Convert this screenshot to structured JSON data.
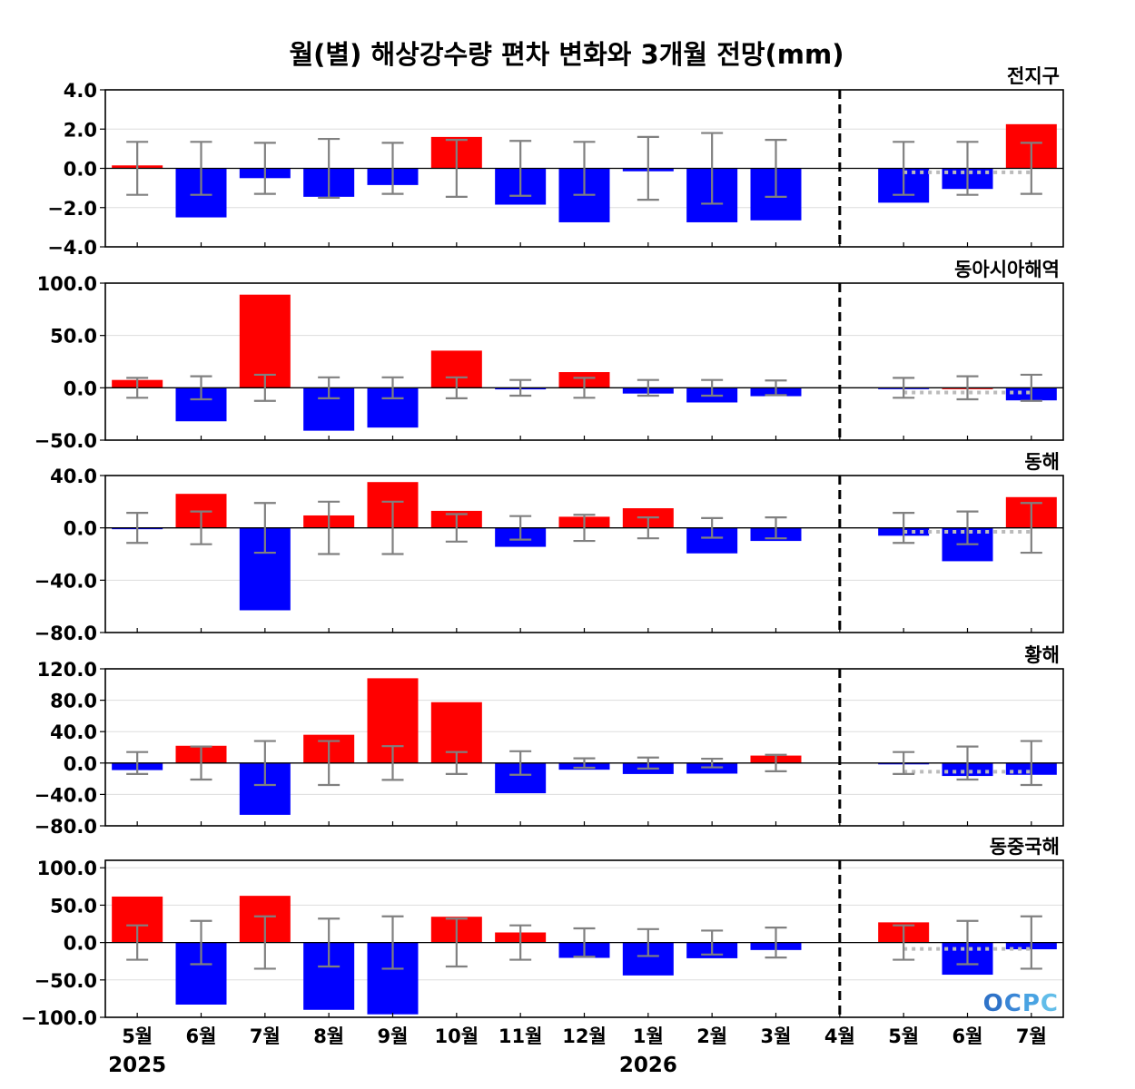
{
  "title": "월(별) 해상강수량 편차 변화와 3개월 전망(mm)",
  "logo": "OCPC",
  "colors": {
    "positive": "#ff0000",
    "negative": "#0000ff",
    "errorbar": "#808080",
    "forecast_line": "#bbbbbb",
    "grid": "#dddddd"
  },
  "chart_data": {
    "type": "bar",
    "categories": [
      "5월",
      "6월",
      "7월",
      "8월",
      "9월",
      "10월",
      "11월",
      "12월",
      "1월",
      "2월",
      "3월",
      "4월",
      "5월",
      "6월",
      "7월"
    ],
    "years": [
      {
        "label": "2025",
        "index": 0
      },
      {
        "label": "2026",
        "index": 8
      }
    ],
    "divider_after_index": 11,
    "panels": [
      {
        "name": "전지구",
        "ylim": [
          -4,
          4
        ],
        "yticks": [
          4,
          2,
          0,
          -2,
          -4
        ],
        "ytick_labels": [
          "4.0",
          "2.0",
          "0.0",
          "−2.0",
          "−4.0"
        ],
        "values": [
          0.15,
          -2.5,
          -0.5,
          -1.45,
          -0.85,
          1.6,
          -1.85,
          -2.75,
          -0.15,
          -2.75,
          -2.65,
          null,
          -1.75,
          -1.05,
          2.25
        ],
        "error": [
          1.35,
          1.35,
          1.3,
          1.5,
          1.3,
          1.45,
          1.4,
          1.35,
          1.6,
          1.8,
          1.45,
          null,
          1.35,
          1.35,
          1.3
        ],
        "forecast_mean": -0.2
      },
      {
        "name": "동아시아해역",
        "ylim": [
          -50,
          100
        ],
        "yticks": [
          100,
          50,
          0,
          -50
        ],
        "ytick_labels": [
          "100.0",
          "50.0",
          "0.0",
          "−50.0"
        ],
        "values": [
          7.5,
          -32,
          89,
          -41,
          -38,
          35.5,
          -1.5,
          15,
          -5.5,
          -14,
          -8,
          null,
          -0.5,
          0,
          -12
        ],
        "error": [
          9.5,
          11,
          12.5,
          10,
          10,
          10,
          7.5,
          9.5,
          7.5,
          7.5,
          7,
          null,
          9.5,
          11,
          12.5
        ],
        "forecast_mean": -4.5
      },
      {
        "name": "동해",
        "ylim": [
          -80,
          40
        ],
        "yticks": [
          40,
          0,
          -40,
          -80
        ],
        "ytick_labels": [
          "40.0",
          "0.0",
          "−40.0",
          "−80.0"
        ],
        "values": [
          -1,
          26,
          -63,
          9.5,
          35,
          13,
          -14.5,
          8.5,
          15,
          -19.5,
          -10,
          null,
          -6,
          -25.5,
          23.5
        ],
        "error": [
          11.5,
          12.5,
          19,
          20,
          20,
          10.5,
          9,
          10,
          8,
          7.5,
          8,
          null,
          11.5,
          12.5,
          19
        ],
        "forecast_mean": -3
      },
      {
        "name": "황해",
        "ylim": [
          -80,
          120
        ],
        "yticks": [
          120,
          80,
          40,
          0,
          -40,
          -80
        ],
        "ytick_labels": [
          "120.0",
          "80.0",
          "40.0",
          "0.0",
          "−40.0",
          "−80.0"
        ],
        "values": [
          -9,
          22,
          -66,
          36,
          108,
          77.5,
          -38.5,
          -8.5,
          -14,
          -13.5,
          9.5,
          null,
          -1.5,
          -16.5,
          -15
        ],
        "error": [
          14,
          21,
          28,
          28,
          21.5,
          14,
          15,
          6,
          7,
          5.5,
          10.5,
          null,
          14,
          21,
          28
        ],
        "forecast_mean": -11
      },
      {
        "name": "동중국해",
        "ylim": [
          -100,
          110
        ],
        "yticks": [
          100,
          50,
          0,
          -50,
          -100
        ],
        "ytick_labels": [
          "100.0",
          "50.0",
          "0.0",
          "−50.0",
          "−100.0"
        ],
        "values": [
          61.5,
          -83,
          62.5,
          -90,
          -96,
          34.5,
          13.5,
          -20.5,
          -44,
          -21,
          -10,
          null,
          27,
          -43,
          -9
        ],
        "error": [
          23,
          29,
          35,
          32,
          35,
          32,
          23,
          19,
          18,
          16,
          20,
          null,
          23,
          29,
          35
        ],
        "forecast_mean": -8.5
      }
    ]
  }
}
